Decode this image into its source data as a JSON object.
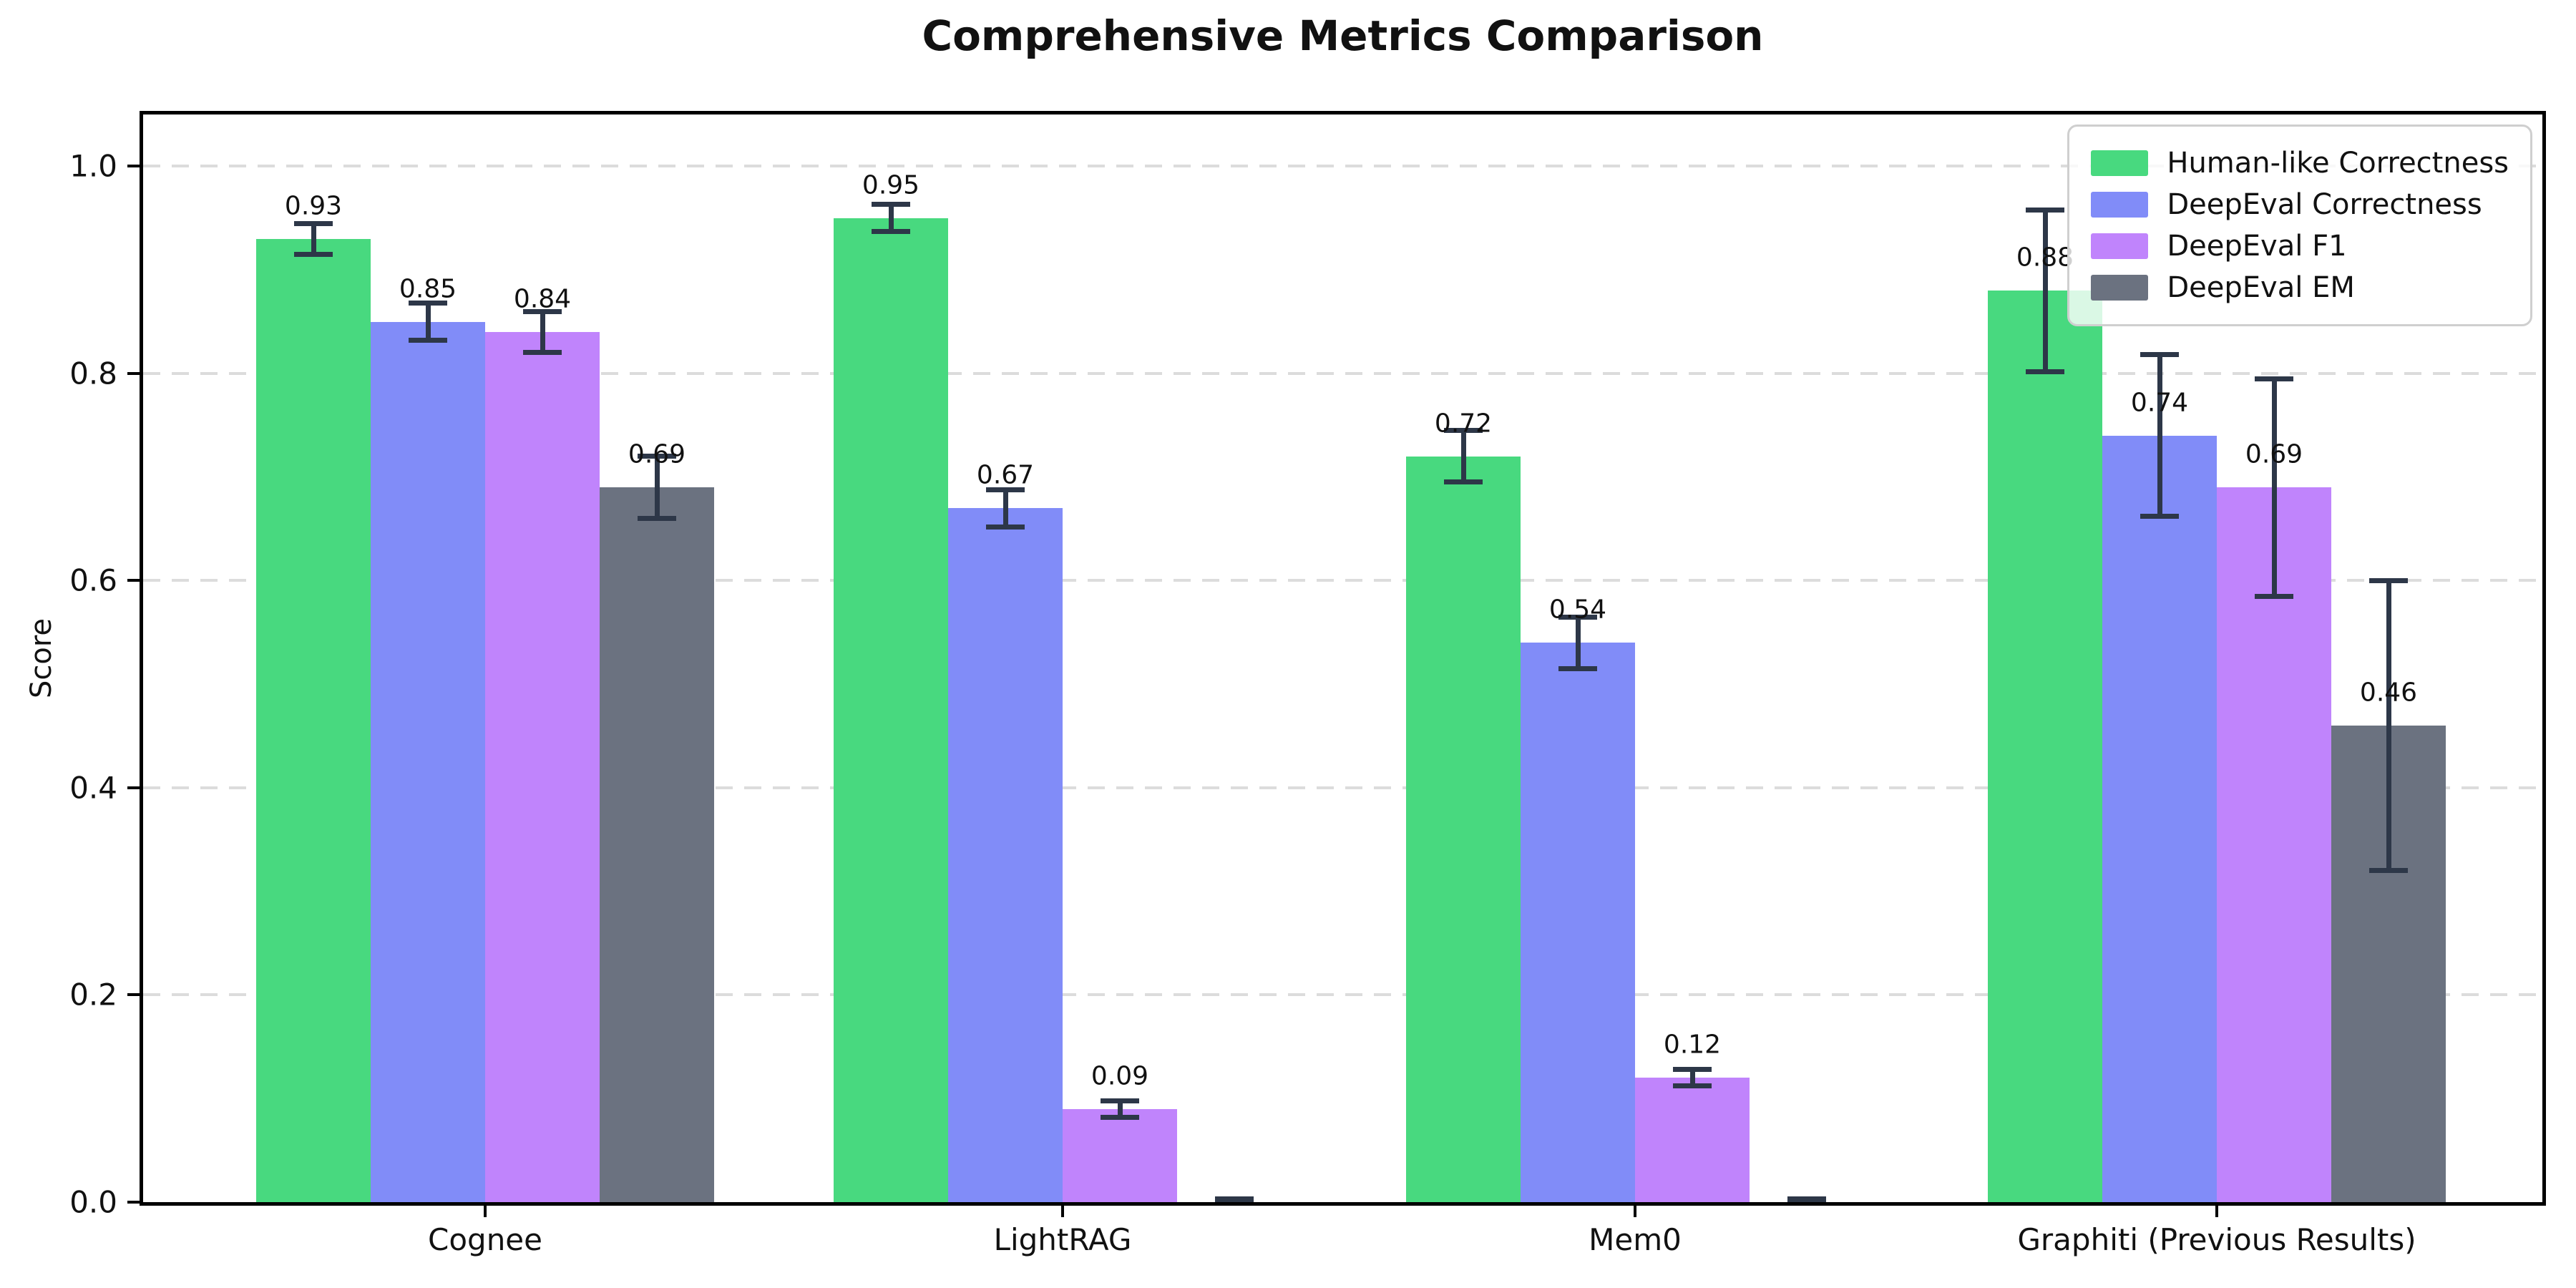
{
  "figure": {
    "title": "Comprehensive Metrics Comparison",
    "background": "#ffffff"
  },
  "chart_data": {
    "type": "bar",
    "title": "Comprehensive Metrics Comparison",
    "xlabel": "",
    "ylabel": "Score",
    "ylim": [
      0,
      1.05
    ],
    "yticks": [
      "0.0",
      "0.2",
      "0.4",
      "0.6",
      "0.8",
      "1.0"
    ],
    "grid": "horizontal-dashed",
    "legend_position": "upper-right",
    "categories": [
      "Cognee",
      "LightRAG",
      "Mem0",
      "Graphiti (Previous Results)"
    ],
    "series": [
      {
        "name": "Human-like Correctness",
        "color": "#48d97f",
        "values": [
          0.93,
          0.95,
          0.72,
          0.88
        ],
        "errors": [
          0.015,
          0.013,
          0.025,
          0.078
        ],
        "labels": [
          "0.93",
          "0.95",
          "0.72",
          "0.88"
        ]
      },
      {
        "name": "DeepEval Correctness",
        "color": "#818cf8",
        "values": [
          0.85,
          0.67,
          0.54,
          0.74
        ],
        "errors": [
          0.018,
          0.018,
          0.025,
          0.078
        ],
        "labels": [
          "0.85",
          "0.67",
          "0.54",
          "0.74"
        ]
      },
      {
        "name": "DeepEval F1",
        "color": "#c084fc",
        "values": [
          0.84,
          0.09,
          0.12,
          0.69
        ],
        "errors": [
          0.02,
          0.008,
          0.008,
          0.105
        ],
        "labels": [
          "0.84",
          "0.09",
          "0.12",
          "0.69"
        ]
      },
      {
        "name": "DeepEval EM",
        "color": "#6b7280",
        "values": [
          0.69,
          0.0,
          0.0,
          0.46
        ],
        "errors": [
          0.03,
          0.003,
          0.003,
          0.14
        ],
        "labels": [
          "0.69",
          "",
          "",
          "0.46"
        ]
      }
    ],
    "style": {
      "error_color": "#2d3748",
      "grid_color": "#dcdcdc",
      "axis_color": "#000000",
      "text_color": "#111111",
      "legend_border": "#cfcfcf",
      "legend_background": "rgba(255,255,255,0.8)"
    }
  }
}
